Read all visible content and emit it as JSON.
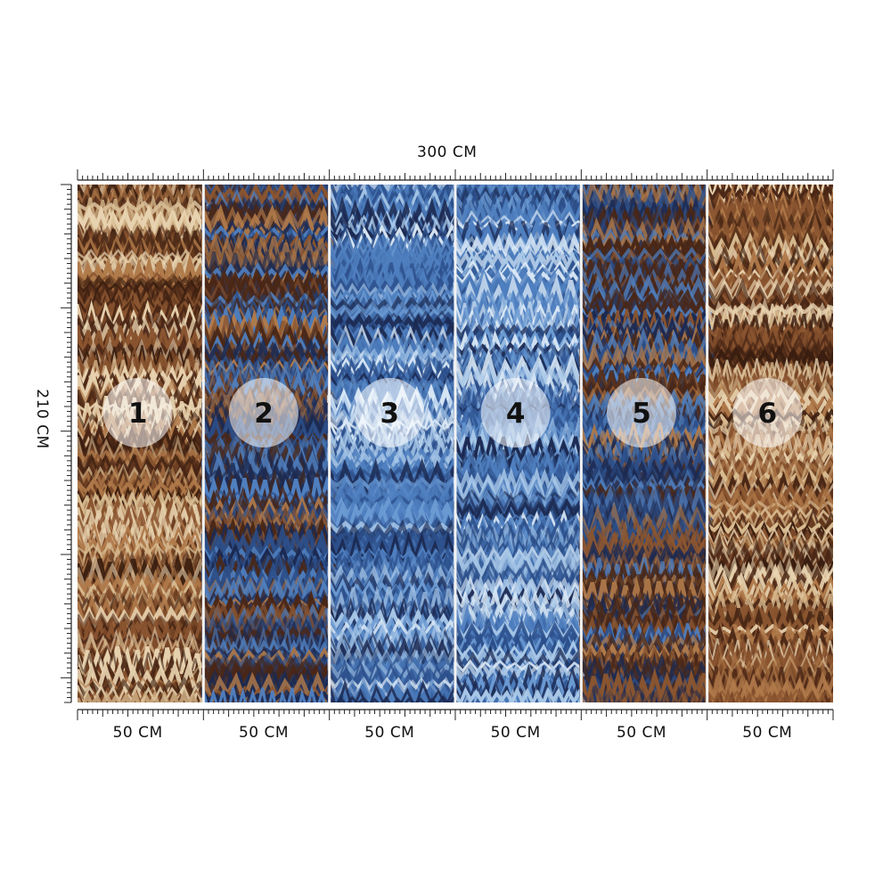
{
  "dimensions": {
    "total_width": "300 CM",
    "total_height": "210 CM"
  },
  "panels": [
    {
      "number": "1",
      "width_label": "50 CM",
      "palette": "brown"
    },
    {
      "number": "2",
      "width_label": "50 CM",
      "palette": "brown-blue"
    },
    {
      "number": "3",
      "width_label": "50 CM",
      "palette": "blue"
    },
    {
      "number": "4",
      "width_label": "50 CM",
      "palette": "blue"
    },
    {
      "number": "5",
      "width_label": "50 CM",
      "palette": "brown-blue"
    },
    {
      "number": "6",
      "width_label": "50 CM",
      "palette": "brown"
    }
  ],
  "colors": {
    "brown_dark": "#4a2716",
    "brown_mid": "#8a5530",
    "cream": "#e8d3b0",
    "navy": "#1c2a52",
    "blue_mid": "#4f7fbf",
    "blue_light": "#a9c8e8",
    "divider": "#f2f2f2"
  }
}
